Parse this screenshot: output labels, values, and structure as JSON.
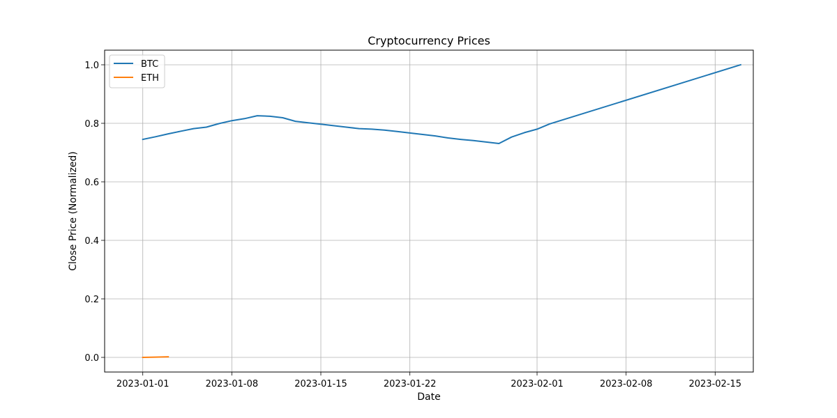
{
  "chart_data": {
    "type": "line",
    "title": "Cryptocurrency Prices",
    "xlabel": "Date",
    "ylabel": "Close Price (Normalized)",
    "x_scale": "date",
    "xlim": [
      "2022-12-29",
      "2023-02-18"
    ],
    "ylim": [
      -0.05,
      1.05
    ],
    "x_ticks": [
      "2023-01-01",
      "2023-01-08",
      "2023-01-15",
      "2023-01-22",
      "2023-02-01",
      "2023-02-08",
      "2023-02-15"
    ],
    "y_ticks": [
      "0.0",
      "0.2",
      "0.4",
      "0.6",
      "0.8",
      "1.0"
    ],
    "grid": true,
    "legend_position": "top-left",
    "series": [
      {
        "name": "BTC",
        "color": "#1f77b4",
        "points": [
          {
            "x": "2023-01-01",
            "y": 0.745
          },
          {
            "x": "2023-01-02",
            "y": 0.754
          },
          {
            "x": "2023-01-03",
            "y": 0.764
          },
          {
            "x": "2023-01-04",
            "y": 0.773
          },
          {
            "x": "2023-01-05",
            "y": 0.782
          },
          {
            "x": "2023-01-06",
            "y": 0.787
          },
          {
            "x": "2023-01-07",
            "y": 0.799
          },
          {
            "x": "2023-01-08",
            "y": 0.809
          },
          {
            "x": "2023-01-09",
            "y": 0.816
          },
          {
            "x": "2023-01-10",
            "y": 0.826
          },
          {
            "x": "2023-01-11",
            "y": 0.824
          },
          {
            "x": "2023-01-12",
            "y": 0.819
          },
          {
            "x": "2023-01-13",
            "y": 0.807
          },
          {
            "x": "2023-01-14",
            "y": 0.802
          },
          {
            "x": "2023-01-15",
            "y": 0.797
          },
          {
            "x": "2023-01-16",
            "y": 0.792
          },
          {
            "x": "2023-01-17",
            "y": 0.787
          },
          {
            "x": "2023-01-18",
            "y": 0.782
          },
          {
            "x": "2023-01-19",
            "y": 0.78
          },
          {
            "x": "2023-01-20",
            "y": 0.777
          },
          {
            "x": "2023-01-21",
            "y": 0.772
          },
          {
            "x": "2023-01-22",
            "y": 0.767
          },
          {
            "x": "2023-01-23",
            "y": 0.762
          },
          {
            "x": "2023-01-24",
            "y": 0.757
          },
          {
            "x": "2023-01-25",
            "y": 0.75
          },
          {
            "x": "2023-01-26",
            "y": 0.745
          },
          {
            "x": "2023-01-27",
            "y": 0.741
          },
          {
            "x": "2023-01-28",
            "y": 0.736
          },
          {
            "x": "2023-01-29",
            "y": 0.731
          },
          {
            "x": "2023-01-30",
            "y": 0.753
          },
          {
            "x": "2023-01-31",
            "y": 0.768
          },
          {
            "x": "2023-02-01",
            "y": 0.78
          },
          {
            "x": "2023-02-02",
            "y": 0.798
          },
          {
            "x": "2023-02-17",
            "y": 1.0
          }
        ]
      },
      {
        "name": "ETH",
        "color": "#ff7f0e",
        "points": [
          {
            "x": "2023-01-01",
            "y": 0.0
          },
          {
            "x": "2023-01-02",
            "y": 0.001
          },
          {
            "x": "2023-01-03",
            "y": 0.002
          }
        ]
      }
    ]
  }
}
